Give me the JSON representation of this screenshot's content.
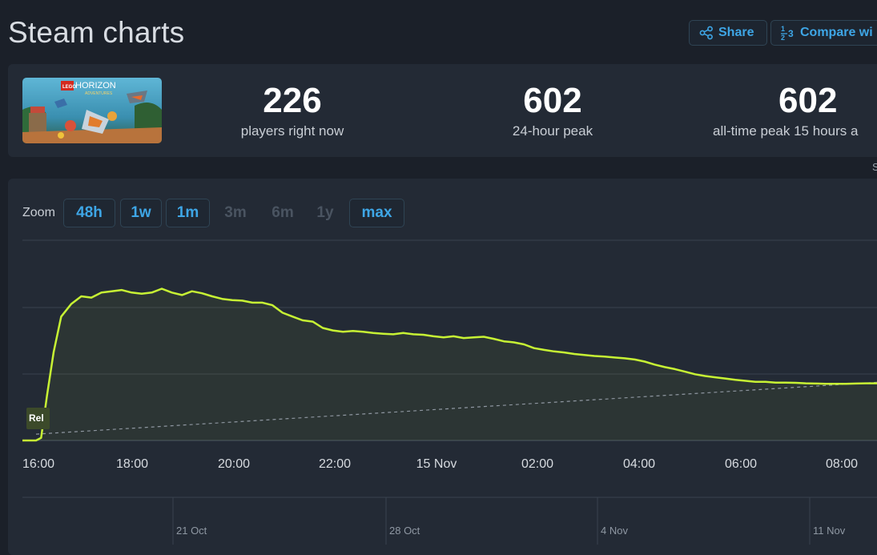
{
  "header": {
    "title": "Steam charts",
    "share_label": "Share",
    "compare_label": "Compare wi"
  },
  "stats": {
    "now_value": "226",
    "now_label": "players right now",
    "peak24_value": "602",
    "peak24_label": "24-hour peak",
    "alltime_value": "602",
    "alltime_label": "all-time peak 15 hours a"
  },
  "game": {
    "logo_text_1": "LEGO",
    "logo_text_2": "HORIZON",
    "logo_text_3": "ADVENTURES"
  },
  "zoom": {
    "label": "Zoom",
    "options": [
      {
        "label": "48h",
        "enabled": true
      },
      {
        "label": "1w",
        "enabled": true
      },
      {
        "label": "1m",
        "enabled": true
      },
      {
        "label": "3m",
        "enabled": false
      },
      {
        "label": "6m",
        "enabled": false
      },
      {
        "label": "1y",
        "enabled": false
      },
      {
        "label": "max",
        "enabled": true
      }
    ]
  },
  "edge_glyph": "S",
  "chart_data": {
    "type": "line",
    "x_tick_labels": [
      "16:00",
      "18:00",
      "20:00",
      "22:00",
      "15 Nov",
      "02:00",
      "04:00",
      "06:00",
      "08:00"
    ],
    "navigator_labels": [
      "21 Oct",
      "28 Oct",
      "4 Nov",
      "11 Nov"
    ],
    "release_marker": "Rel",
    "x_hours": [
      0,
      0.1,
      0.22,
      0.35,
      0.5,
      0.7,
      0.9,
      1.1,
      1.3,
      1.5,
      1.7,
      1.9,
      2.1,
      2.3,
      2.5,
      2.7,
      2.9,
      3.1,
      3.3,
      3.5,
      3.7,
      3.9,
      4.1,
      4.3,
      4.5,
      4.7,
      4.9,
      5.1,
      5.3,
      5.5,
      5.7,
      5.9,
      6.1,
      6.3,
      6.5,
      6.7,
      6.9,
      7.1,
      7.3,
      7.5,
      7.7,
      7.9,
      8.1,
      8.3,
      8.5,
      8.7,
      8.9,
      9.1,
      9.3,
      9.5,
      9.7,
      9.9,
      10.1,
      10.3,
      10.5,
      10.7,
      10.9,
      11.1,
      11.3,
      11.5,
      11.7,
      11.9,
      12.1,
      12.3,
      12.5,
      12.7,
      12.9,
      13.1,
      13.3,
      13.5,
      13.7,
      13.9,
      14.1,
      14.3,
      14.5,
      14.7,
      14.9,
      15.1,
      15.3,
      15.5,
      15.7,
      15.9,
      16.1,
      16.3,
      16.5,
      16.7,
      16.9
    ],
    "players": [
      0,
      10,
      180,
      350,
      490,
      540,
      570,
      565,
      585,
      590,
      595,
      585,
      580,
      585,
      600,
      585,
      575,
      590,
      582,
      570,
      560,
      555,
      553,
      545,
      545,
      535,
      505,
      490,
      475,
      470,
      445,
      435,
      430,
      433,
      430,
      425,
      422,
      420,
      425,
      420,
      418,
      412,
      408,
      412,
      405,
      408,
      410,
      402,
      392,
      388,
      380,
      365,
      358,
      352,
      348,
      342,
      338,
      334,
      332,
      328,
      325,
      320,
      312,
      300,
      290,
      282,
      272,
      262,
      255,
      250,
      245,
      240,
      236,
      232,
      232,
      229,
      229,
      228,
      226,
      225,
      224,
      224,
      224,
      225,
      226,
      226,
      226
    ],
    "compare_line": {
      "start": 25,
      "end": 230
    },
    "ylim": [
      0,
      760
    ],
    "xlim_hours": [
      -0.3,
      16.9
    ],
    "line_color": "#c7f234",
    "compare_color": "#8e96a0",
    "grid": true
  }
}
